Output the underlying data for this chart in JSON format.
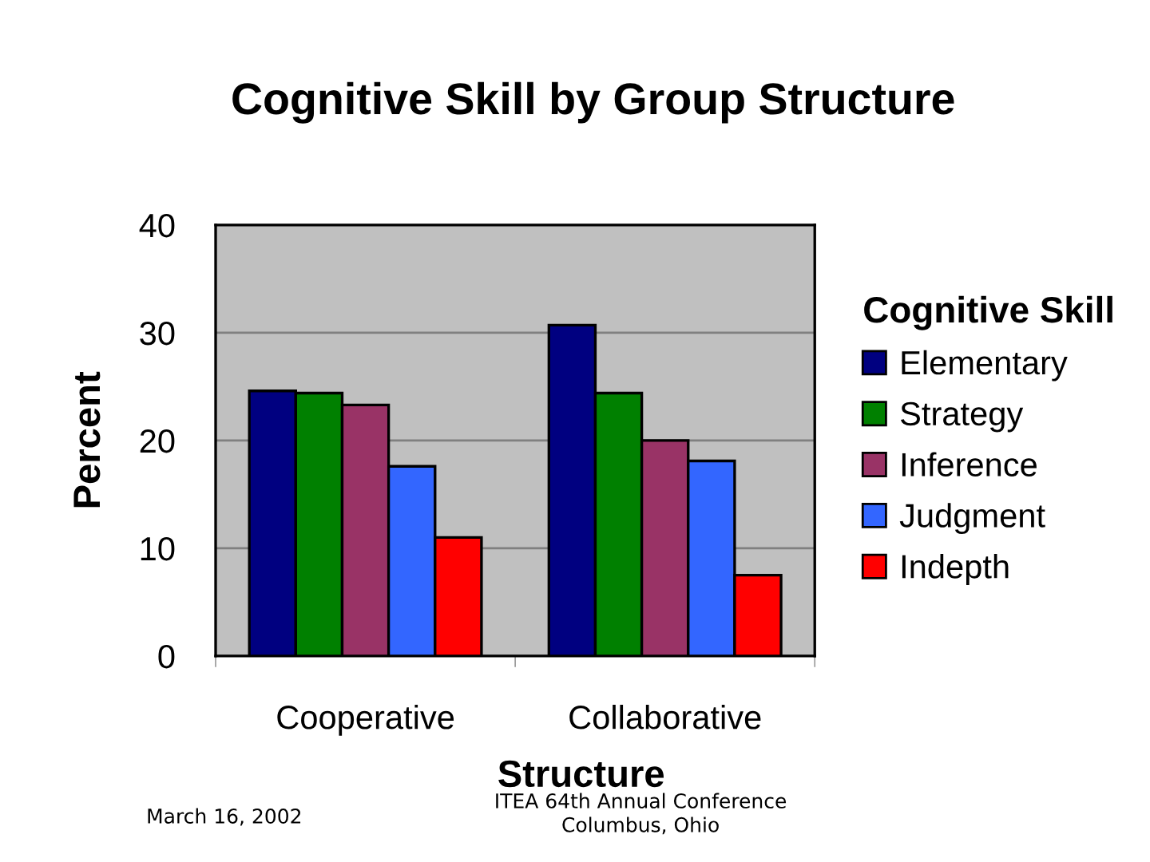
{
  "chart_data": {
    "type": "bar",
    "title": "Cognitive Skill by Group Structure",
    "xlabel": "Structure",
    "ylabel": "Percent",
    "legend_title": "Cognitive Skill",
    "categories": [
      "Cooperative",
      "Collaborative"
    ],
    "series": [
      {
        "name": "Elementary",
        "color": "#000080",
        "values": [
          24.6,
          30.7
        ]
      },
      {
        "name": "Strategy",
        "color": "#008000",
        "values": [
          24.4,
          24.4
        ]
      },
      {
        "name": "Inference",
        "color": "#993366",
        "values": [
          23.3,
          20.0
        ]
      },
      {
        "name": "Judgment",
        "color": "#3366ff",
        "values": [
          17.6,
          18.1
        ]
      },
      {
        "name": "Indepth",
        "color": "#ff0000",
        "values": [
          11.0,
          7.5
        ]
      }
    ],
    "ylim": [
      0,
      40
    ],
    "yticks": [
      0,
      10,
      20,
      30,
      40
    ],
    "grid": "y",
    "legend": "right",
    "annotations": [
      "March 16, 2002",
      "ITEA 64th Annual Conference\nColumbus, Ohio"
    ]
  }
}
